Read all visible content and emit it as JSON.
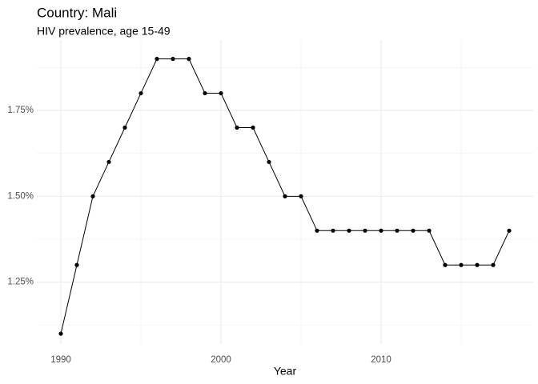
{
  "chart_data": {
    "type": "line",
    "title": "Country: Mali",
    "subtitle": "HIV prevalence, age 15-49",
    "x_label": "Year",
    "x": [
      1990,
      1991,
      1992,
      1993,
      1994,
      1995,
      1996,
      1997,
      1998,
      1999,
      2000,
      2001,
      2002,
      2003,
      2004,
      2005,
      2006,
      2007,
      2008,
      2009,
      2010,
      2011,
      2012,
      2013,
      2014,
      2015,
      2016,
      2017,
      2018
    ],
    "values": [
      1.1,
      1.3,
      1.5,
      1.6,
      1.7,
      1.8,
      1.9,
      1.9,
      1.9,
      1.8,
      1.8,
      1.7,
      1.7,
      1.6,
      1.5,
      1.5,
      1.4,
      1.4,
      1.4,
      1.4,
      1.4,
      1.4,
      1.4,
      1.4,
      1.3,
      1.3,
      1.3,
      1.3,
      1.4
    ],
    "color": "#000000",
    "xlim": [
      1988.5,
      2019.5
    ],
    "ylim": [
      1.07,
      1.955
    ],
    "xticks": [
      1990,
      2000,
      2010
    ],
    "yticks": [
      {
        "value": 1.25,
        "label": "1.25%"
      },
      {
        "value": 1.5,
        "label": "1.50%"
      },
      {
        "value": 1.75,
        "label": "1.75%"
      }
    ],
    "x_minor_grid": [
      1995,
      2005,
      2015
    ],
    "y_minor_grid": [
      1.125,
      1.375,
      1.625,
      1.875
    ],
    "grid": true
  }
}
